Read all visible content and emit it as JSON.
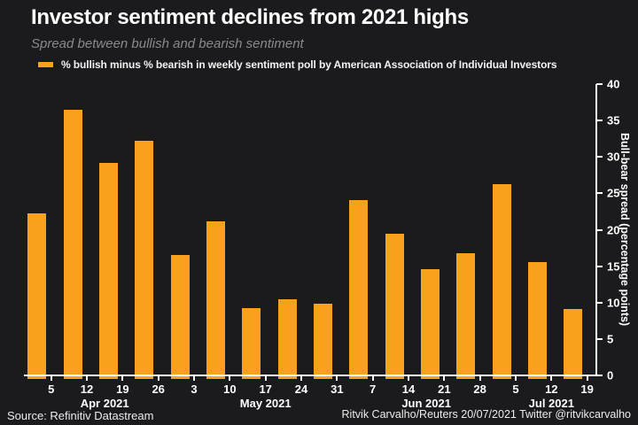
{
  "header": {
    "title": "Investor sentiment declines from 2021 highs",
    "subtitle": "Spread between bullish and bearish sentiment"
  },
  "legend": {
    "label": "% bullish minus % bearish in weekly sentiment poll by American Association of Individual Investors"
  },
  "footer": {
    "source": "Source: Refinitiv Datastream",
    "credit": "Ritvik Carvalho/Reuters 20/07/2021 Twitter @ritvikcarvalho"
  },
  "colors": {
    "background": "#1b1b1e",
    "bar": "#f9a01c",
    "axis": "#ffffff",
    "subtitle_gray": "#8a8a8d",
    "text_white": "#f2f2f2"
  },
  "chart_data": {
    "type": "bar",
    "title": "Investor sentiment declines from 2021 highs",
    "subtitle": "Spread between bullish and bearish sentiment",
    "series_label": "% bullish minus % bearish in weekly sentiment poll by American Association of Individual Investors",
    "x_tick_labels": [
      "5",
      "12",
      "19",
      "26",
      "3",
      "10",
      "17",
      "24",
      "31",
      "7",
      "14",
      "21",
      "28",
      "5",
      "12",
      "19"
    ],
    "month_groups": [
      {
        "label": "Apr 2021",
        "start_tick": 0,
        "end_tick": 3
      },
      {
        "label": "May 2021",
        "start_tick": 4,
        "end_tick": 8
      },
      {
        "label": "Jun 2021",
        "start_tick": 9,
        "end_tick": 12
      },
      {
        "label": "Jul 2021",
        "start_tick": 13,
        "end_tick": 15
      }
    ],
    "values": [
      22.3,
      36.5,
      29.2,
      32.2,
      16.5,
      21.2,
      9.2,
      10.4,
      9.8,
      24.1,
      19.4,
      14.6,
      16.8,
      26.3,
      15.6,
      9.1
    ],
    "ylabel": "Bull-bear spread (percentage points)",
    "ylim": [
      0,
      40
    ],
    "yticks": [
      0,
      5,
      10,
      15,
      20,
      25,
      30,
      35,
      40
    ],
    "grid": false,
    "legend_position": "top-left",
    "bar_color": "#f9a01c"
  }
}
